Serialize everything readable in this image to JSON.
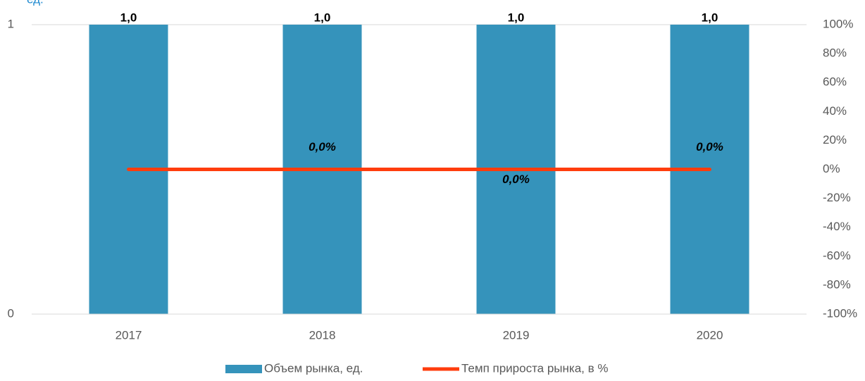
{
  "chart_data": {
    "type": "bar_line",
    "ylabel": "ед.",
    "categories": [
      "2017",
      "2018",
      "2019",
      "2020"
    ],
    "series": [
      {
        "name": "Объем рынка, ед.",
        "type": "bar",
        "color": "#3593bb",
        "values": [
          1,
          1,
          1,
          1
        ],
        "value_labels": [
          "1,0",
          "1,0",
          "1,0",
          "1,0"
        ]
      },
      {
        "name": "Темп прироста рынка, в %",
        "type": "line",
        "axis": "y2",
        "color": "#ff3d0d",
        "values": [
          0,
          0,
          0,
          0
        ],
        "value_labels": [
          null,
          "0,0%",
          "0,0%",
          "0,0%"
        ]
      }
    ],
    "ylim": [
      0,
      1
    ],
    "yticks": [
      0,
      1
    ],
    "y2lim": [
      -100,
      100
    ],
    "y2ticks": [
      {
        "value": 100,
        "label": "100%"
      },
      {
        "value": 80,
        "label": "80%"
      },
      {
        "value": 60,
        "label": "60%"
      },
      {
        "value": 40,
        "label": "40%"
      },
      {
        "value": 20,
        "label": "20%"
      },
      {
        "value": 0,
        "label": "0%"
      },
      {
        "value": -20,
        "label": "-20%"
      },
      {
        "value": -40,
        "label": "-40%"
      },
      {
        "value": -60,
        "label": "-60%"
      },
      {
        "value": -80,
        "label": "-80%"
      },
      {
        "value": -100,
        "label": "-100%"
      }
    ],
    "grid": true,
    "legend": "bottom"
  }
}
